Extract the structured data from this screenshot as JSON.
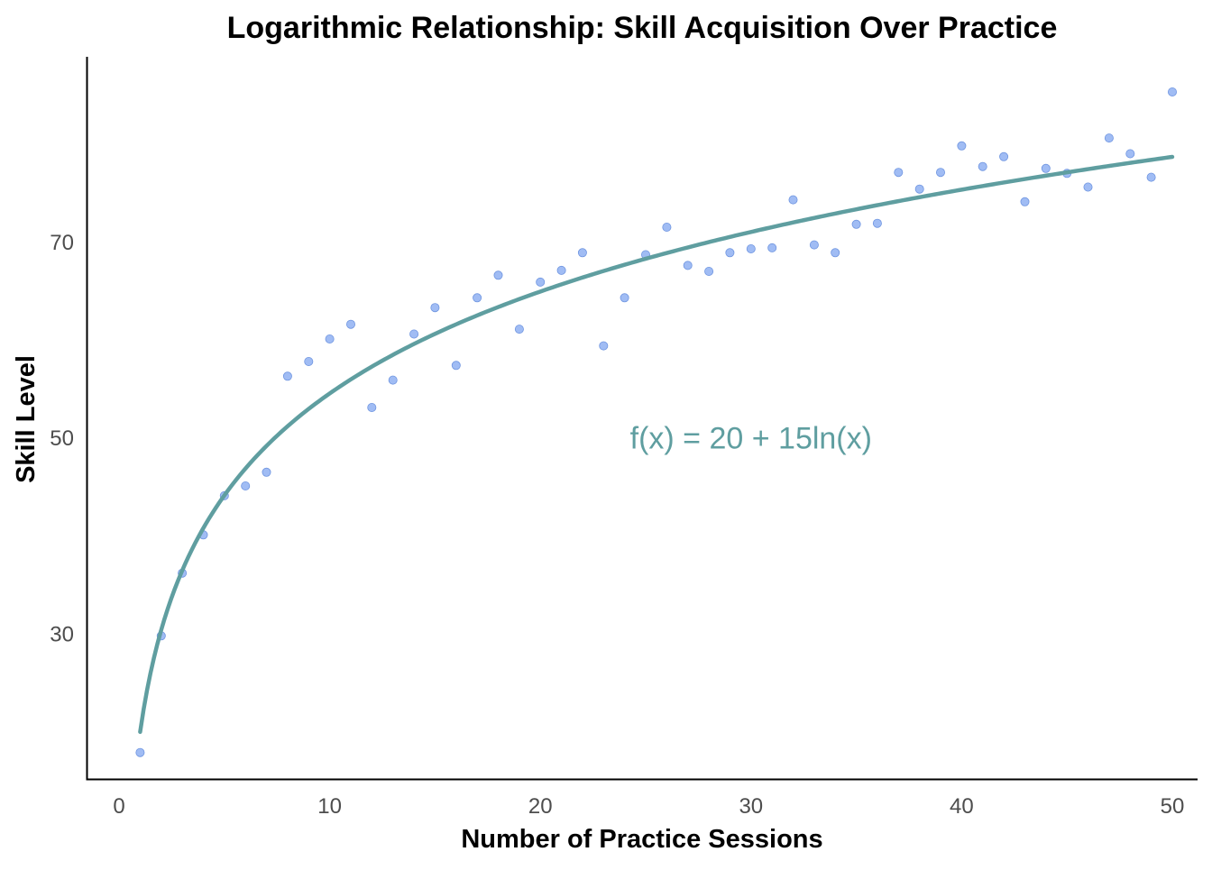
{
  "chart_data": {
    "type": "scatter",
    "title": "Logarithmic Relationship: Skill Acquisition Over Practice",
    "xlabel": "Number of Practice Sessions",
    "ylabel": "Skill Level",
    "xlim": [
      -1.5,
      51.2
    ],
    "ylim": [
      15.2,
      88.8
    ],
    "x_ticks": [
      0,
      10,
      20,
      30,
      40,
      50
    ],
    "y_ticks": [
      30,
      50,
      70
    ],
    "grid": false,
    "legend": "none",
    "annotation": "f(x) = 20 + 15ln(x)",
    "annotation_position": {
      "x": 30,
      "y": 50
    },
    "colors": {
      "points": "#8fb0f2",
      "points_stroke": "#6f95e0",
      "curve": "#5f9ea0",
      "annotation": "#5f9ea0",
      "axis": "#000000",
      "tick_text": "#4d4d4d"
    },
    "series": [
      {
        "type": "scatter",
        "x": [
          1,
          2,
          3,
          4,
          5,
          6,
          7,
          8,
          9,
          10,
          11,
          12,
          13,
          14,
          15,
          16,
          17,
          18,
          19,
          20,
          21,
          22,
          23,
          24,
          25,
          26,
          27,
          28,
          29,
          30,
          31,
          32,
          33,
          34,
          35,
          36,
          37,
          38,
          39,
          40,
          41,
          42,
          43,
          44,
          45,
          46,
          47,
          48,
          49,
          50
        ],
        "y": [
          17.9,
          29.8,
          36.2,
          40.1,
          44.1,
          45.1,
          46.5,
          56.3,
          57.8,
          60.1,
          61.6,
          53.1,
          55.9,
          60.6,
          63.3,
          57.4,
          64.3,
          66.6,
          61.1,
          65.9,
          67.1,
          68.9,
          59.4,
          64.3,
          68.7,
          71.5,
          67.6,
          67.0,
          68.9,
          69.3,
          69.4,
          74.3,
          69.7,
          68.9,
          71.8,
          71.9,
          77.1,
          75.4,
          77.1,
          79.8,
          77.7,
          78.7,
          74.1,
          77.5,
          77.0,
          75.6,
          80.6,
          79.0,
          76.6,
          85.3
        ]
      },
      {
        "type": "line",
        "formula": "f(x) = 20 + 15ln(x)",
        "x_range": [
          1,
          50
        ]
      }
    ]
  }
}
